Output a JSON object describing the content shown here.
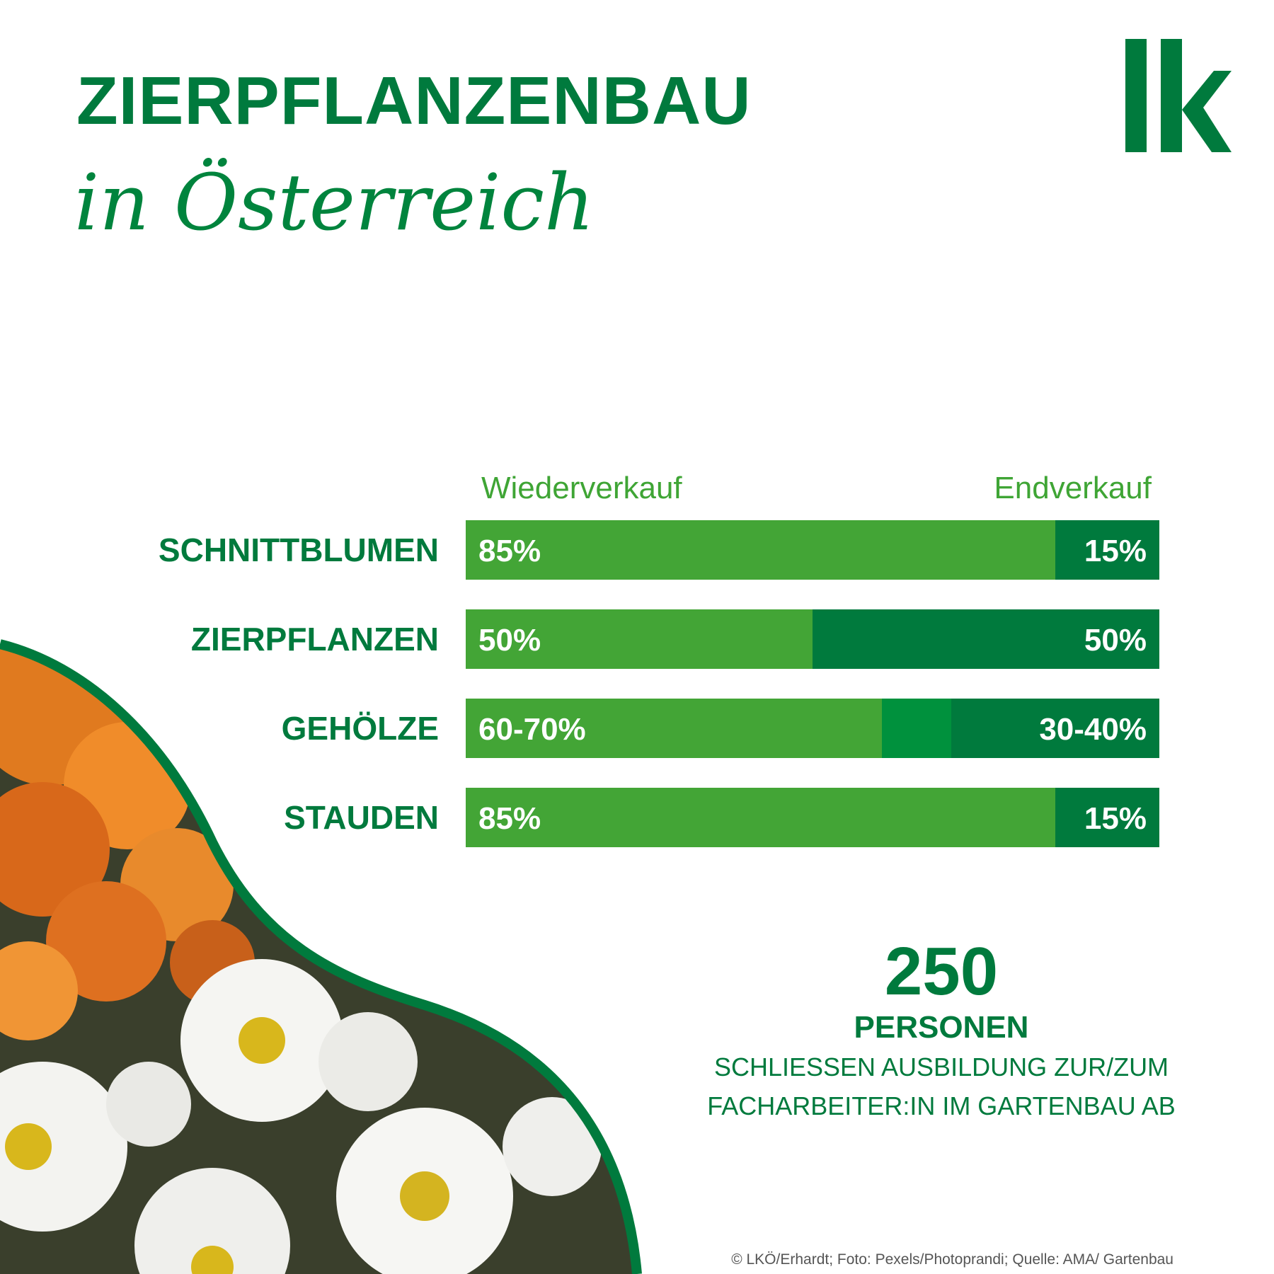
{
  "header": {
    "title": "ZIERPFLANZENBAU",
    "subtitle": "in Österreich"
  },
  "logo": {
    "text": "lk",
    "color": "#007a3d"
  },
  "chart_data": {
    "type": "bar",
    "orientation": "horizontal",
    "stacked": true,
    "column_labels": [
      "Wiederverkauf",
      "Endverkauf"
    ],
    "categories": [
      "SCHNITTBLUMEN",
      "ZIERPFLANZEN",
      "GEHÖLZE",
      "STAUDEN"
    ],
    "series": [
      {
        "name": "Wiederverkauf",
        "values": [
          85,
          50,
          60,
          85
        ],
        "labels": [
          "85%",
          "50%",
          "60-70%",
          "85%"
        ]
      },
      {
        "name": "Endverkauf",
        "values": [
          15,
          50,
          30,
          15
        ],
        "labels": [
          "15%",
          "50%",
          "30-40%",
          "15%"
        ]
      }
    ],
    "range_band": {
      "category": "GEHÖLZE",
      "from": 60,
      "to": 70
    },
    "xlim": [
      0,
      100
    ],
    "colors": {
      "wiederverkauf": "#43a536",
      "endverkauf": "#007a3d",
      "range": "#00913d"
    }
  },
  "stat": {
    "number": "250",
    "unit": "PERSONEN",
    "line1": "SCHLIESSEN AUSBILDUNG ZUR/ZUM",
    "line2": "FACHARBEITER:IN IM GARTENBAU  AB"
  },
  "credit": "© LKÖ/Erhardt; Foto: Pexels/Photoprandi; Quelle: AMA/ Gartenbau",
  "colors": {
    "brand_green": "#007a3d",
    "light_green": "#3fa535",
    "orange_flower": "#e8791a"
  }
}
